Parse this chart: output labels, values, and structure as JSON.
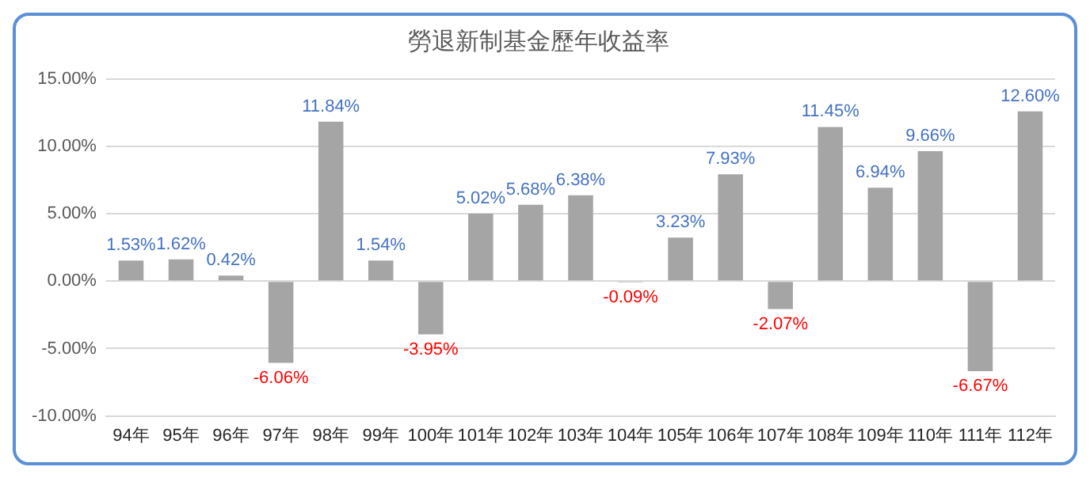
{
  "chart_data": {
    "type": "bar",
    "title": "勞退新制基金歷年收益率",
    "categories": [
      "94年",
      "95年",
      "96年",
      "97年",
      "98年",
      "99年",
      "100年",
      "101年",
      "102年",
      "103年",
      "104年",
      "105年",
      "106年",
      "107年",
      "108年",
      "109年",
      "110年",
      "111年",
      "112年"
    ],
    "values": [
      1.53,
      1.62,
      0.42,
      -6.06,
      11.84,
      1.54,
      -3.95,
      5.02,
      5.68,
      6.38,
      -0.09,
      3.23,
      7.93,
      -2.07,
      11.45,
      6.94,
      9.66,
      -6.67,
      12.6
    ],
    "value_labels": [
      "1.53%",
      "1.62%",
      "0.42%",
      "-6.06%",
      "11.84%",
      "1.54%",
      "-3.95%",
      "5.02%",
      "5.68%",
      "6.38%",
      "-0.09%",
      "3.23%",
      "7.93%",
      "-2.07%",
      "11.45%",
      "6.94%",
      "9.66%",
      "-6.67%",
      "12.60%"
    ],
    "color": "#a5a5a5",
    "ylim": [
      -10,
      15
    ],
    "yticks": [
      {
        "value": -10,
        "label": "-10.00%"
      },
      {
        "value": -5,
        "label": "-5.00%"
      },
      {
        "value": 0,
        "label": "0.00%"
      },
      {
        "value": 5,
        "label": "5.00%"
      },
      {
        "value": 10,
        "label": "10.00%"
      },
      {
        "value": 15,
        "label": "15.00%"
      }
    ],
    "grid": "y"
  }
}
